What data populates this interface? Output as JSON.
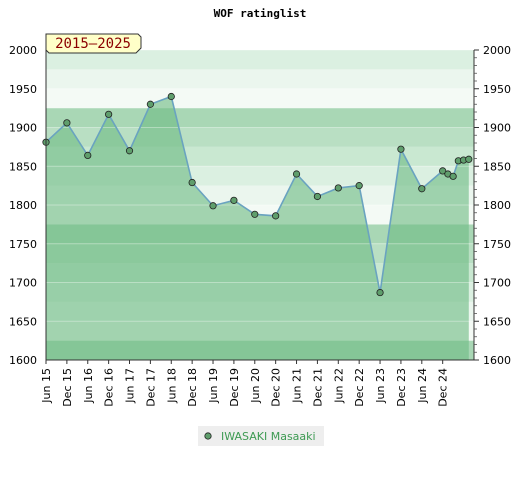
{
  "chart_data": {
    "type": "area",
    "title": "WOF ratinglist",
    "period_badge": "2015–2025",
    "ylim": [
      1600,
      2000
    ],
    "yticks": [
      1600,
      1650,
      1700,
      1750,
      1800,
      1850,
      1900,
      1950,
      2000
    ],
    "categories": [
      "Jun 15",
      "Dec 15",
      "Jun 16",
      "Dec 16",
      "Jun 17",
      "Dec 17",
      "Jun 18",
      "Dec 18",
      "Jun 19",
      "Dec 19",
      "Jun 20",
      "Dec 20",
      "Jun 21",
      "Dec 21",
      "Jun 22",
      "Dec 22",
      "Jun 23",
      "Dec 23",
      "Jun 24",
      "Dec 24"
    ],
    "series": [
      {
        "name": "IWASAKI Masaaki",
        "points": [
          {
            "x": 0,
            "y": 1881
          },
          {
            "x": 1,
            "y": 1906
          },
          {
            "x": 2,
            "y": 1864
          },
          {
            "x": 3,
            "y": 1917
          },
          {
            "x": 4,
            "y": 1870
          },
          {
            "x": 5,
            "y": 1930
          },
          {
            "x": 6,
            "y": 1940
          },
          {
            "x": 7,
            "y": 1829
          },
          {
            "x": 8,
            "y": 1799
          },
          {
            "x": 9,
            "y": 1806
          },
          {
            "x": 10,
            "y": 1788
          },
          {
            "x": 11,
            "y": 1786
          },
          {
            "x": 12,
            "y": 1840
          },
          {
            "x": 13,
            "y": 1811
          },
          {
            "x": 14,
            "y": 1822
          },
          {
            "x": 15,
            "y": 1825
          },
          {
            "x": 16,
            "y": 1687
          },
          {
            "x": 17,
            "y": 1872
          },
          {
            "x": 18,
            "y": 1821
          },
          {
            "x": 19,
            "y": 1844
          },
          {
            "x": 19.25,
            "y": 1840
          },
          {
            "x": 19.5,
            "y": 1837
          },
          {
            "x": 19.75,
            "y": 1857
          },
          {
            "x": 20,
            "y": 1858
          },
          {
            "x": 20.25,
            "y": 1859
          }
        ]
      }
    ],
    "colors": {
      "line": "#6aa3c0",
      "area": "#6fbb84",
      "marker": "#5f9e6c",
      "legend_text": "#3d9a52",
      "badge_bg": "#ffffc8"
    },
    "legend_position": "bottom"
  }
}
